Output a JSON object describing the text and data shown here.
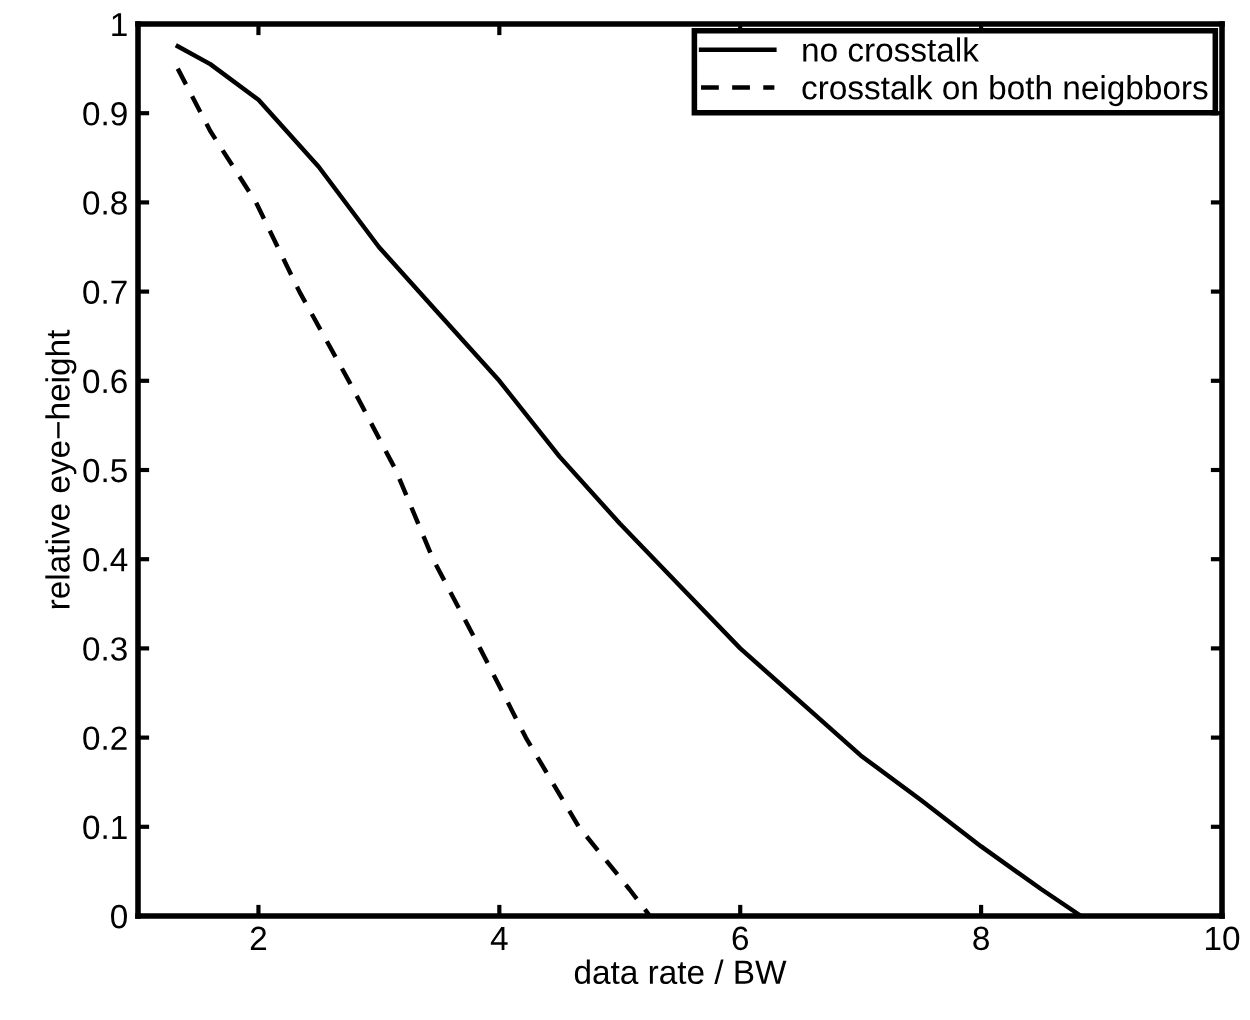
{
  "chart_data": {
    "type": "line",
    "xlabel": "data rate / BW",
    "ylabel": "relative eye−height",
    "xlim": [
      1,
      10
    ],
    "ylim": [
      0,
      1
    ],
    "xticks": [
      2,
      4,
      6,
      8,
      10
    ],
    "yticks": [
      0,
      0.1,
      0.2,
      0.3,
      0.4,
      0.5,
      0.6,
      0.7,
      0.8,
      0.9,
      1
    ],
    "grid": false,
    "legend": "top right",
    "marker": "none",
    "series": [
      {
        "name": "no crosstalk",
        "color": "#000000",
        "line_style": "solid",
        "x": [
          1.33,
          1.6,
          2.0,
          2.5,
          3.0,
          3.5,
          4.0,
          4.5,
          5.0,
          5.5,
          6.0,
          6.5,
          7.0,
          7.5,
          8.0,
          8.5,
          8.83
        ],
        "values": [
          0.975,
          0.955,
          0.915,
          0.84,
          0.75,
          0.675,
          0.6,
          0.515,
          0.44,
          0.37,
          0.3,
          0.24,
          0.18,
          0.13,
          0.078,
          0.03,
          0
        ]
      },
      {
        "name": "crosstalk on both neigbbors",
        "color": "#000000",
        "line_style": "dashed",
        "x": [
          1.33,
          1.6,
          1.98,
          2.34,
          2.75,
          3.14,
          3.45,
          3.84,
          4.22,
          4.66,
          5.08,
          5.25
        ],
        "values": [
          0.95,
          0.88,
          0.8,
          0.7,
          0.6,
          0.5,
          0.4,
          0.3,
          0.2,
          0.1,
          0.03,
          0
        ]
      }
    ]
  }
}
